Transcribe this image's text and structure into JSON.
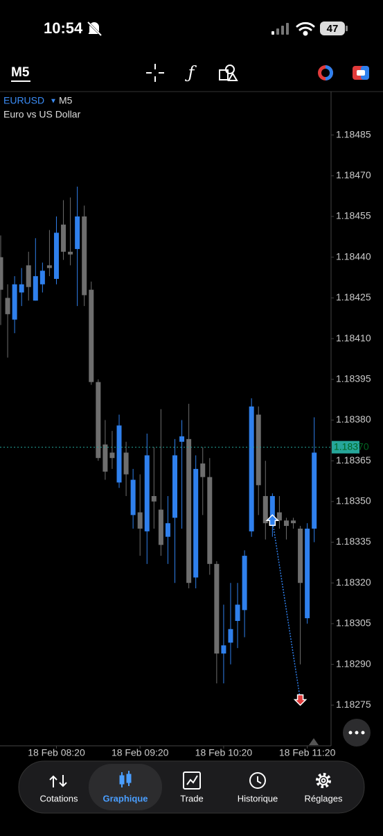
{
  "status_bar": {
    "time": "10:54",
    "battery": "47"
  },
  "toolbar": {
    "timeframe": "M5"
  },
  "chart_data": {
    "type": "candlestick",
    "symbol": "EURUSD",
    "timeframe": "M5",
    "subtitle": "Euro vs US Dollar",
    "categories": [
      null,
      null,
      null,
      null,
      null,
      null,
      null,
      null,
      "18 Feb 08:20",
      null,
      null,
      null,
      null,
      null,
      null,
      null,
      null,
      null,
      null,
      null,
      "18 Feb 09:20",
      null,
      null,
      null,
      null,
      null,
      null,
      null,
      null,
      null,
      null,
      null,
      "18 Feb 10:20",
      null,
      null,
      null,
      null,
      null,
      null,
      null,
      null,
      null,
      null,
      null,
      "18 Feb 11:20",
      null
    ],
    "series": [
      {
        "name": "open",
        "values": [
          1.1844,
          1.18425,
          1.18417,
          1.18427,
          1.18437,
          1.18424,
          1.1843,
          1.18437,
          1.18432,
          1.18452,
          1.18442,
          1.18443,
          1.18455,
          1.18428,
          1.18394,
          1.18371,
          1.18368,
          1.18357,
          1.18368,
          1.18345,
          1.18346,
          1.18339,
          1.18352,
          1.18347,
          1.18337,
          1.18344,
          1.18372,
          1.18373,
          1.18322,
          1.18364,
          1.18359,
          1.18327,
          1.18294,
          1.18298,
          1.18306,
          1.1831,
          1.18339,
          1.18382,
          1.18352,
          1.18344,
          1.18346,
          1.18343,
          1.18343,
          1.1834,
          1.18307,
          1.1834
        ]
      },
      {
        "name": "high",
        "values": [
          1.18448,
          1.1843,
          1.18433,
          1.18436,
          1.18442,
          1.18447,
          1.18438,
          1.1845,
          1.18455,
          1.18461,
          1.18462,
          1.18466,
          1.18459,
          1.18431,
          1.18395,
          1.1838,
          1.18376,
          1.18382,
          1.18372,
          1.18362,
          1.1836,
          1.18375,
          1.1837,
          1.18384,
          1.18352,
          1.18373,
          1.1838,
          1.18386,
          1.18367,
          1.1837,
          1.18366,
          1.18328,
          1.18312,
          1.1832,
          1.1832,
          1.18332,
          1.18388,
          1.18385,
          1.18365,
          1.18353,
          1.18352,
          1.18344,
          1.18344,
          1.18341,
          1.18342,
          1.18381
        ]
      },
      {
        "name": "low",
        "values": [
          1.18415,
          1.18403,
          1.18412,
          1.18422,
          1.18424,
          1.18424,
          1.18427,
          1.18433,
          1.1843,
          1.18439,
          1.18437,
          1.18422,
          1.18422,
          1.18393,
          1.18365,
          1.18358,
          1.18362,
          1.18355,
          1.18352,
          1.1834,
          1.1833,
          1.18327,
          1.1834,
          1.1833,
          1.18327,
          1.1832,
          1.1834,
          1.18318,
          1.18318,
          1.18345,
          1.18323,
          1.18283,
          1.18283,
          1.1829,
          1.18296,
          1.183,
          1.18337,
          1.18345,
          1.18336,
          1.18337,
          1.1834,
          1.18336,
          1.1834,
          1.1829,
          1.18305,
          1.18335
        ]
      },
      {
        "name": "close",
        "values": [
          1.18428,
          1.18419,
          1.1843,
          1.1843,
          1.18429,
          1.18433,
          1.18435,
          1.18436,
          1.18449,
          1.18442,
          1.18441,
          1.18455,
          1.18426,
          1.18394,
          1.18366,
          1.18361,
          1.18366,
          1.18378,
          1.1836,
          1.18358,
          1.1834,
          1.18367,
          1.1835,
          1.18334,
          1.18342,
          1.18367,
          1.18374,
          1.1832,
          1.18362,
          1.18359,
          1.18327,
          1.18294,
          1.18297,
          1.18303,
          1.18312,
          1.1833,
          1.18385,
          1.18356,
          1.18342,
          1.18352,
          1.18343,
          1.18341,
          1.18342,
          1.1832,
          1.1834,
          1.18368
        ]
      }
    ],
    "bull_color": "#2f80ed",
    "bear_color": "#6e6e6e",
    "ylim": [
      1.1826,
      1.18501
    ],
    "yticks": [
      1.18485,
      {
        "value": 1.1847,
        "label": "1.18470"
      },
      1.18455,
      {
        "value": 1.1844,
        "label": "1.18440"
      },
      1.18425,
      {
        "value": 1.1841,
        "label": "1.18410"
      },
      1.18395,
      {
        "value": 1.1838,
        "label": "1.18380"
      },
      1.18365,
      {
        "value": 1.1835,
        "label": "1.18350"
      },
      1.18335,
      {
        "value": 1.1832,
        "label": "1.18320"
      },
      1.18305,
      {
        "value": 1.1829,
        "label": "1.18290"
      },
      1.18275
    ],
    "current_price": {
      "value": 1.1837,
      "label": "1.18370"
    },
    "current_color": "#26a69a",
    "trades": [
      {
        "entry": {
          "candle": 39,
          "price": 1.18343
        },
        "exit": {
          "candle": 43,
          "price": 1.18277
        }
      }
    ]
  },
  "nav": {
    "items": [
      "Cotations",
      "Graphique",
      "Trade",
      "Historique",
      "Réglages"
    ],
    "active": 1
  }
}
